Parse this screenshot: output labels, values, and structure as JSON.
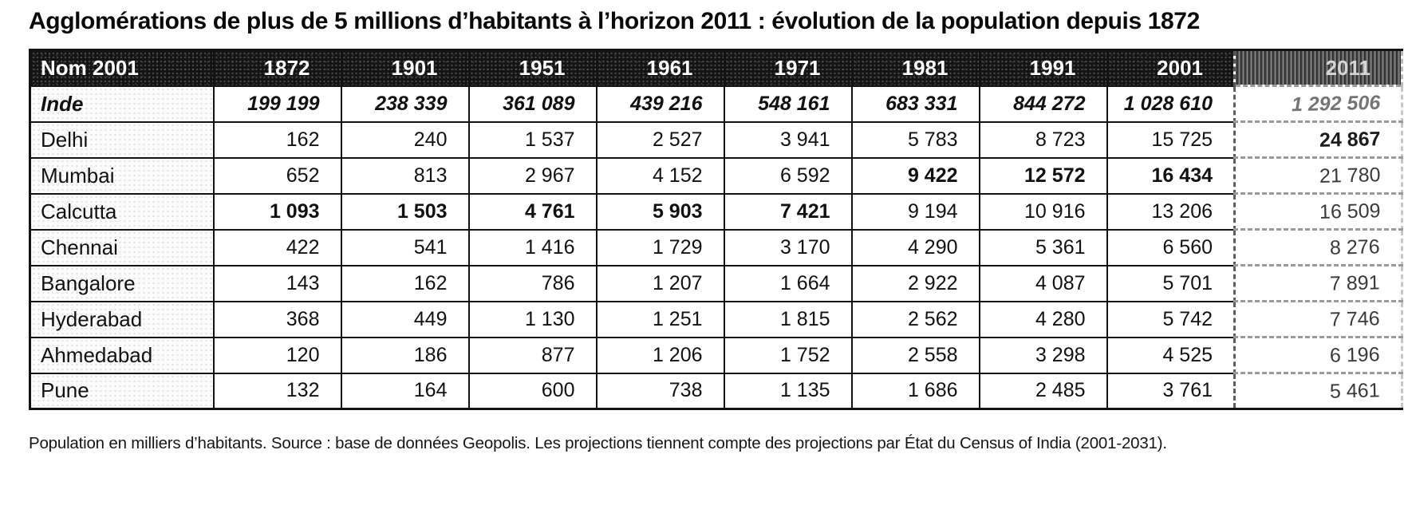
{
  "title": "Agglomérations de plus de 5 millions d’habitants à l’horizon 2011 : évolution de la population depuis 1872",
  "footnote": "Population en milliers d’habitants. Source : base de données Geopolis. Les projections tiennent compte des projections par État du Census of India (2001-2031).",
  "chart_data": {
    "type": "table",
    "unit": "milliers d'habitants",
    "columns": [
      "Nom 2001",
      "1872",
      "1901",
      "1951",
      "1961",
      "1971",
      "1981",
      "1991",
      "2001",
      "2011"
    ],
    "rows": [
      {
        "name": "Inde",
        "emphasis": "bold-italic-row",
        "values": [
          "199 199",
          "238 339",
          "361 089",
          "439 216",
          "548 161",
          "683 331",
          "844 272",
          "1 028 610",
          "1 292 506"
        ]
      },
      {
        "name": "Delhi",
        "bold_columns": [
          "2011"
        ],
        "values": [
          "162",
          "240",
          "1 537",
          "2 527",
          "3 941",
          "5 783",
          "8 723",
          "15 725",
          "24 867"
        ]
      },
      {
        "name": "Mumbai",
        "bold_columns": [
          "1981",
          "1991",
          "2001"
        ],
        "values": [
          "652",
          "813",
          "2 967",
          "4 152",
          "6 592",
          "9 422",
          "12 572",
          "16 434",
          "21 780"
        ]
      },
      {
        "name": "Calcutta",
        "bold_columns": [
          "1872",
          "1901",
          "1951",
          "1961",
          "1971"
        ],
        "values": [
          "1 093",
          "1 503",
          "4 761",
          "5 903",
          "7 421",
          "9 194",
          "10 916",
          "13 206",
          "16 509"
        ]
      },
      {
        "name": "Chennai",
        "bold_columns": [],
        "values": [
          "422",
          "541",
          "1 416",
          "1 729",
          "3 170",
          "4 290",
          "5 361",
          "6 560",
          "8 276"
        ]
      },
      {
        "name": "Bangalore",
        "bold_columns": [],
        "values": [
          "143",
          "162",
          "786",
          "1 207",
          "1 664",
          "2 922",
          "4 087",
          "5 701",
          "7 891"
        ]
      },
      {
        "name": "Hyderabad",
        "bold_columns": [],
        "values": [
          "368",
          "449",
          "1 130",
          "1 251",
          "1 815",
          "2 562",
          "4 280",
          "5 742",
          "7 746"
        ]
      },
      {
        "name": "Ahmedabad",
        "bold_columns": [],
        "values": [
          "120",
          "186",
          "877",
          "1 206",
          "1 752",
          "2 558",
          "3 298",
          "4 525",
          "6 196"
        ]
      },
      {
        "name": "Pune",
        "bold_columns": [],
        "values": [
          "132",
          "164",
          "600",
          "738",
          "1 135",
          "1 686",
          "2 485",
          "3 761",
          "5 461"
        ]
      }
    ]
  }
}
